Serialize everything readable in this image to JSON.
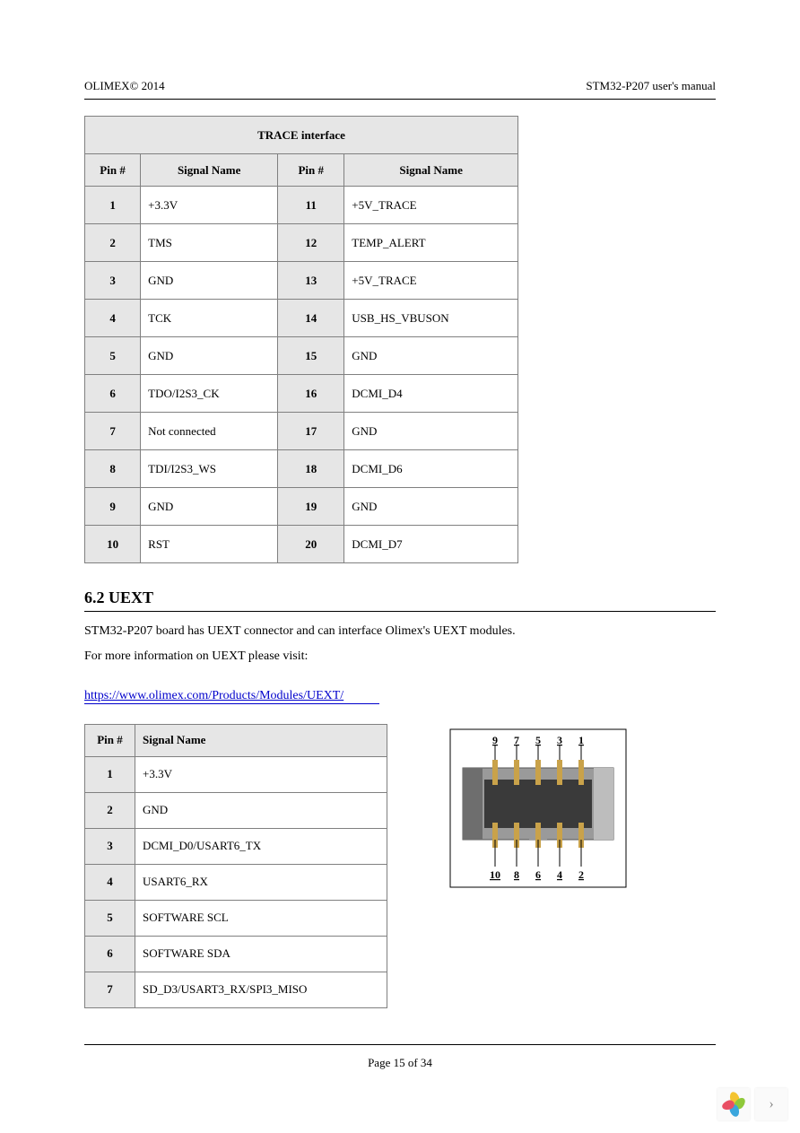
{
  "header": {
    "left": "OLIMEX© 2014",
    "right": "STM32-P207 user's manual"
  },
  "trace_table": {
    "title": "TRACE interface",
    "headers": [
      "Pin #",
      "Signal Name",
      "Pin #",
      "Signal Name"
    ],
    "rows": [
      {
        "p1": "1",
        "s1": "+3.3V",
        "p2": "11",
        "s2": "+5V_TRACE"
      },
      {
        "p1": "2",
        "s1": "TMS",
        "p2": "12",
        "s2": "TEMP_ALERT"
      },
      {
        "p1": "3",
        "s1": "GND",
        "p2": "13",
        "s2": "+5V_TRACE"
      },
      {
        "p1": "4",
        "s1": "TCK",
        "p2": "14",
        "s2": "USB_HS_VBUSON"
      },
      {
        "p1": "5",
        "s1": "GND",
        "p2": "15",
        "s2": "GND"
      },
      {
        "p1": "6",
        "s1": "TDO/I2S3_CK",
        "p2": "16",
        "s2": "DCMI_D4"
      },
      {
        "p1": "7",
        "s1": "Not connected",
        "p2": "17",
        "s2": "GND"
      },
      {
        "p1": "8",
        "s1": "TDI/I2S3_WS",
        "p2": "18",
        "s2": "DCMI_D6"
      },
      {
        "p1": "9",
        "s1": "GND",
        "p2": "19",
        "s2": "GND"
      },
      {
        "p1": "10",
        "s1": "RST",
        "p2": "20",
        "s2": "DCMI_D7"
      }
    ]
  },
  "section": {
    "title": "6.2 UEXT",
    "para1": "STM32-P207 board has UEXT connector and can interface Olimex's UEXT modules.",
    "para2": "For more information on UEXT please visit:",
    "link_text": "https://www.olimex.com/Products/Modules/UEXT/"
  },
  "uext_table": {
    "headers": [
      "Pin #",
      "Signal Name"
    ],
    "rows": [
      {
        "p": "1",
        "s": "+3.3V"
      },
      {
        "p": "2",
        "s": "GND"
      },
      {
        "p": "3",
        "s": "DCMI_D0/USART6_TX"
      },
      {
        "p": "4",
        "s": "USART6_RX"
      },
      {
        "p": "5",
        "s": "SOFTWARE SCL"
      },
      {
        "p": "6",
        "s": "SOFTWARE SDA"
      },
      {
        "p": "7",
        "s": "SD_D3/USART3_RX/SPI3_MISO"
      }
    ]
  },
  "connector": {
    "top_labels": [
      "9",
      "7",
      "5",
      "3",
      "1"
    ],
    "bottom_labels": [
      "10",
      "8",
      "6",
      "4",
      "2"
    ],
    "body_color": "#9a9a9a",
    "body_dark": "#6e6e6e",
    "slot_color": "#3a3a3a",
    "pin_color": "#c9a24a",
    "border_color": "#000000",
    "label_fontsize": 12
  },
  "footer": {
    "text": "Page 15 of 34"
  },
  "colors": {
    "link": "#0000cc",
    "table_header_bg": "#e6e6e6",
    "table_border": "#808080",
    "text": "#000000",
    "background": "#ffffff"
  },
  "logo": {
    "petal_colors": [
      "#f4c430",
      "#8fc93a",
      "#3aa6dd",
      "#e94f64"
    ]
  }
}
